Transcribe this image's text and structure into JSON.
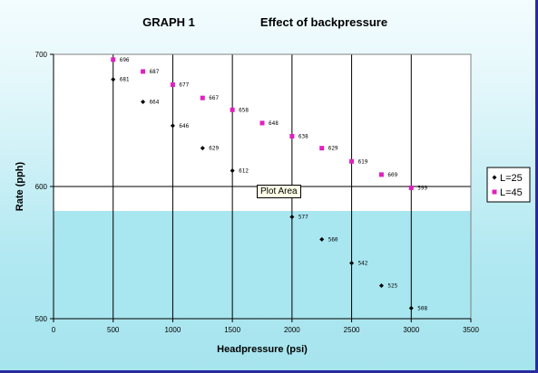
{
  "chart_data": {
    "type": "scatter",
    "title": "GRAPH 1",
    "subtitle": "Effect of backpressure",
    "xlabel": "Headpressure (psi)",
    "ylabel": "Rate (pph)",
    "xlim": [
      0,
      3500
    ],
    "ylim": [
      500,
      700
    ],
    "xticks": [
      0,
      500,
      1000,
      1500,
      2000,
      2500,
      3000,
      3500
    ],
    "yticks": [
      500,
      600,
      700
    ],
    "grid": "vertical and horizontal major lines",
    "legend": "right",
    "series": [
      {
        "name": "L=25",
        "color": "#000000",
        "marker": "diamond",
        "x": [
          500,
          750,
          1000,
          1250,
          1500,
          2000,
          2250,
          2500,
          2750,
          3000
        ],
        "y": [
          681,
          664,
          646,
          629,
          612,
          577,
          560,
          542,
          525,
          508
        ],
        "labels": [
          "681",
          "664",
          "646",
          "629",
          "612",
          "577",
          "560",
          "542",
          "525",
          "508"
        ]
      },
      {
        "name": "L=45",
        "color": "#e020c0",
        "marker": "square",
        "x": [
          500,
          750,
          1000,
          1250,
          1500,
          1750,
          2000,
          2250,
          2500,
          2750,
          3000
        ],
        "y": [
          696,
          687,
          677,
          667,
          658,
          648,
          638,
          629,
          619,
          609,
          599
        ],
        "labels": [
          "696",
          "687",
          "677",
          "667",
          "658",
          "648",
          "638",
          "629",
          "619",
          "609",
          "599"
        ]
      }
    ]
  },
  "tooltip": {
    "text": "Plot Area"
  }
}
